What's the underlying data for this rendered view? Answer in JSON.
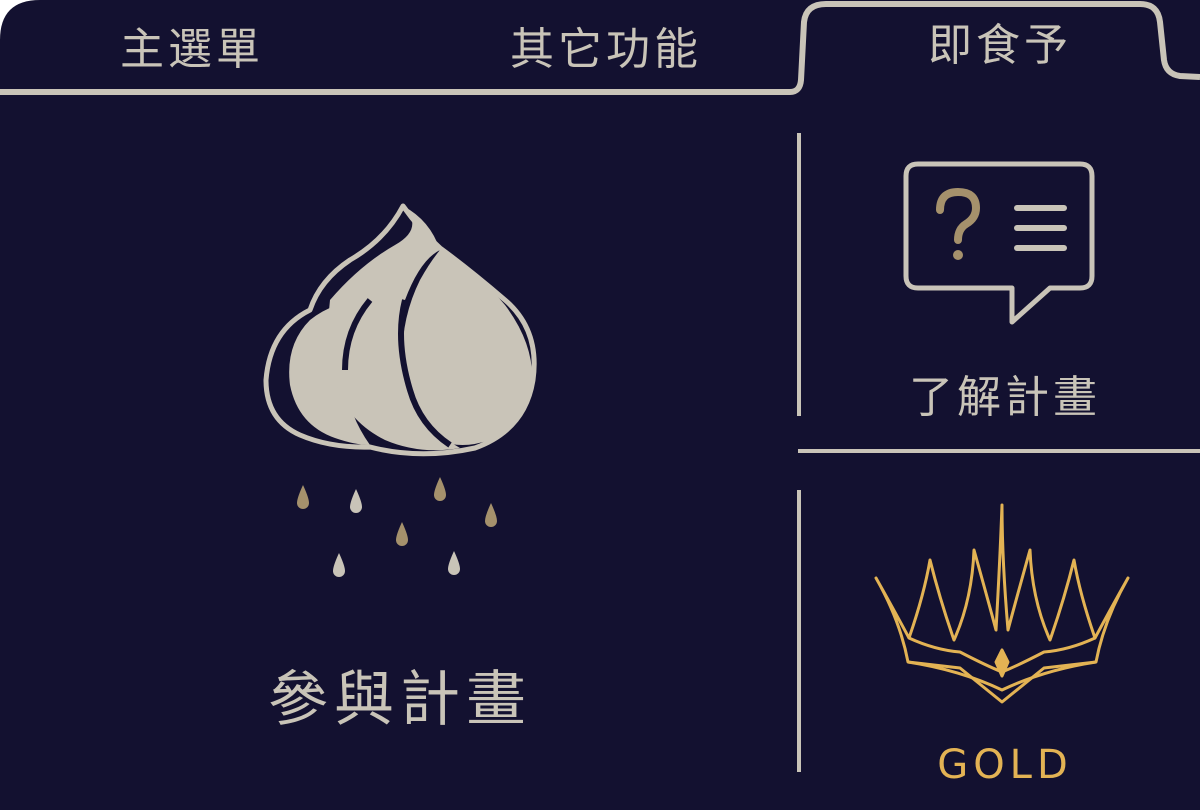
{
  "tabs": [
    {
      "label": "主選單",
      "active": false
    },
    {
      "label": "其它功能",
      "active": false
    },
    {
      "label": "即食予",
      "active": true
    }
  ],
  "main_card": {
    "label": "參與計畫",
    "icon": "cream-cloud-rain-icon"
  },
  "info_card": {
    "label": "了解計畫",
    "icon": "question-chat-icon"
  },
  "gold_card": {
    "label": "GOLD",
    "icon": "crown-icon"
  },
  "colors": {
    "background": "#131130",
    "foreground": "#c9c4b8",
    "gold": "#e3b354",
    "droplet_gold": "#a5916c"
  }
}
